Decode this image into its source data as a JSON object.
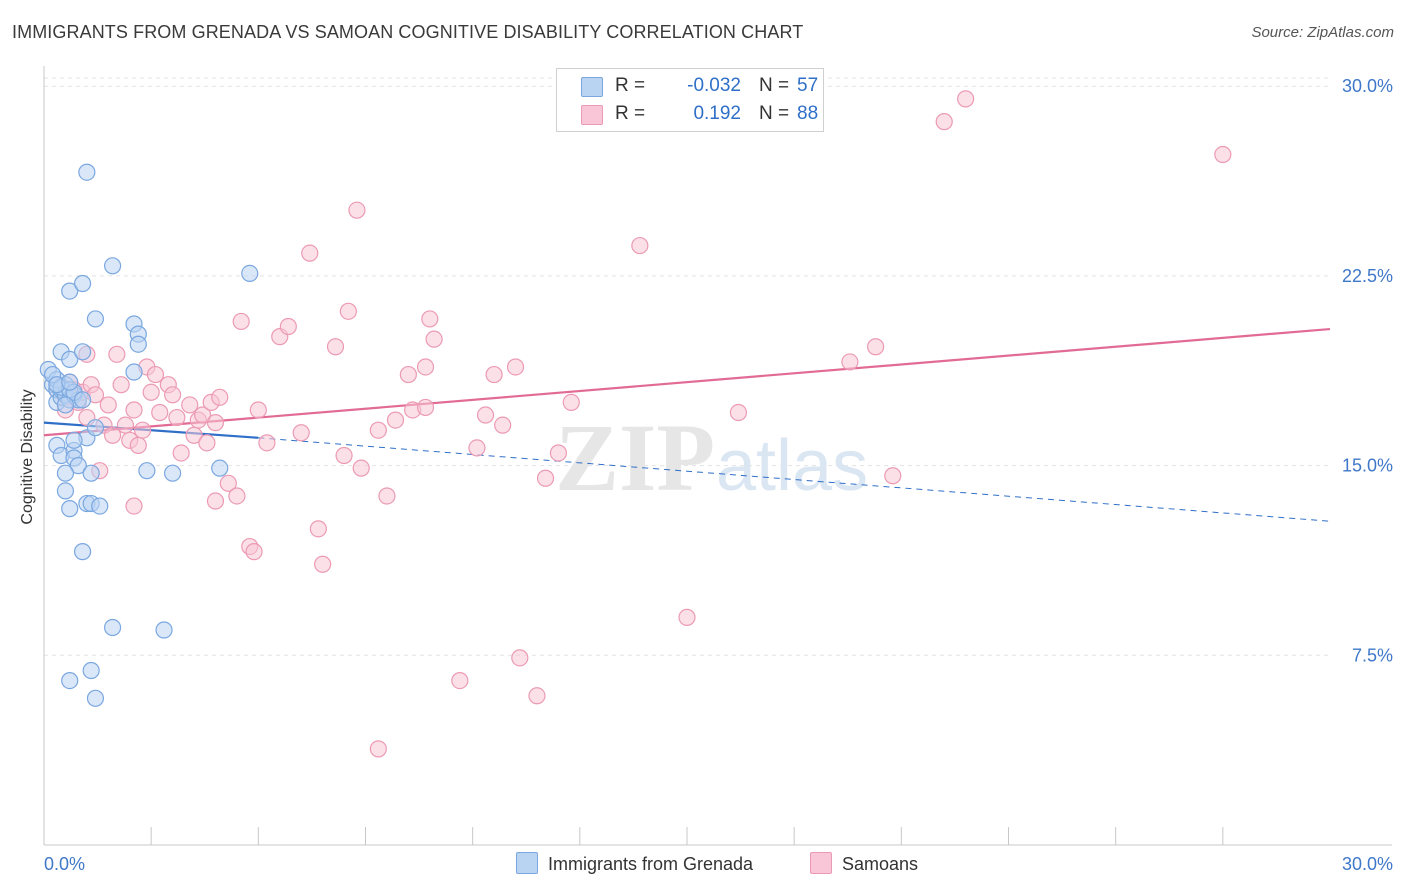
{
  "title": "IMMIGRANTS FROM GRENADA VS SAMOAN COGNITIVE DISABILITY CORRELATION CHART",
  "source": "Source: ZipAtlas.com",
  "watermark": {
    "zip": "ZIP",
    "atlas": "atlas"
  },
  "colors": {
    "blue_fill": "#b9d3f3",
    "blue_stroke": "#7aa7e0",
    "blue_line": "#2f6fc8",
    "pink_fill": "#f8c6d6",
    "pink_stroke": "#ec9ab4",
    "pink_line": "#e26b96",
    "tick_label": "#3f78c9",
    "grid": "#e3e3e3",
    "axis": "#c8c8c8"
  },
  "stats_box": {
    "rows": [
      {
        "series": "blue",
        "r_label": "R =",
        "r_value": "-0.032",
        "n_label": "N =",
        "n_value": "57"
      },
      {
        "series": "pink",
        "r_label": "R =",
        "r_value": "0.192",
        "n_label": "N =",
        "n_value": "88"
      }
    ]
  },
  "legend": {
    "items": [
      {
        "label": "Immigrants from Grenada",
        "series": "blue"
      },
      {
        "label": "Samoans",
        "series": "pink"
      }
    ]
  },
  "chart_data": {
    "type": "scatter",
    "title": "IMMIGRANTS FROM GRENADA VS SAMOAN COGNITIVE DISABILITY CORRELATION CHART",
    "xlabel": "",
    "ylabel": "Cognitive Disability",
    "xlim": [
      0,
      30
    ],
    "ylim": [
      0,
      30.8
    ],
    "x_tick_labels": [
      {
        "value": 0,
        "label": "0.0%"
      },
      {
        "value": 30,
        "label": "30.0%"
      }
    ],
    "y_tick_labels": [
      {
        "value": 7.5,
        "label": "7.5%"
      },
      {
        "value": 15.0,
        "label": "15.0%"
      },
      {
        "value": 22.5,
        "label": "22.5%"
      },
      {
        "value": 30.0,
        "label": "30.0%"
      }
    ],
    "series": [
      {
        "name": "Immigrants from Grenada",
        "color": "blue",
        "trend": {
          "x": [
            0.0,
            5.0
          ],
          "y": [
            16.7,
            16.1
          ],
          "dashed_to": {
            "x": 30.0,
            "y": 12.8
          }
        },
        "points": [
          [
            0.1,
            18.8
          ],
          [
            0.2,
            18.2
          ],
          [
            0.3,
            17.5
          ],
          [
            0.3,
            18.0
          ],
          [
            0.4,
            17.7
          ],
          [
            0.4,
            18.0
          ],
          [
            0.5,
            17.8
          ],
          [
            0.5,
            18.2
          ],
          [
            0.6,
            17.6
          ],
          [
            0.7,
            17.8
          ],
          [
            0.8,
            17.6
          ],
          [
            0.3,
            18.4
          ],
          [
            0.4,
            18.1
          ],
          [
            0.6,
            18.0
          ],
          [
            0.7,
            17.9
          ],
          [
            0.5,
            17.4
          ],
          [
            0.2,
            18.6
          ],
          [
            0.3,
            18.2
          ],
          [
            0.6,
            18.3
          ],
          [
            0.9,
            17.6
          ],
          [
            0.4,
            19.5
          ],
          [
            0.6,
            19.2
          ],
          [
            0.9,
            19.5
          ],
          [
            1.2,
            20.8
          ],
          [
            2.1,
            20.6
          ],
          [
            2.2,
            20.2
          ],
          [
            2.2,
            19.8
          ],
          [
            2.1,
            18.7
          ],
          [
            0.6,
            21.9
          ],
          [
            0.9,
            22.2
          ],
          [
            1.6,
            22.9
          ],
          [
            4.8,
            22.6
          ],
          [
            1.0,
            26.6
          ],
          [
            0.3,
            15.8
          ],
          [
            0.4,
            15.4
          ],
          [
            0.7,
            15.6
          ],
          [
            0.7,
            15.3
          ],
          [
            0.8,
            15.0
          ],
          [
            0.5,
            14.7
          ],
          [
            1.1,
            14.7
          ],
          [
            2.4,
            14.8
          ],
          [
            3.0,
            14.7
          ],
          [
            4.1,
            14.9
          ],
          [
            1.0,
            16.1
          ],
          [
            1.2,
            16.5
          ],
          [
            0.5,
            14.0
          ],
          [
            0.6,
            13.3
          ],
          [
            1.0,
            13.5
          ],
          [
            1.1,
            13.5
          ],
          [
            1.3,
            13.4
          ],
          [
            0.9,
            11.6
          ],
          [
            1.6,
            8.6
          ],
          [
            2.8,
            8.5
          ],
          [
            1.1,
            6.9
          ],
          [
            0.6,
            6.5
          ],
          [
            1.2,
            5.8
          ],
          [
            0.7,
            16.0
          ]
        ]
      },
      {
        "name": "Samoans",
        "color": "pink",
        "trend": {
          "x": [
            0.0,
            30.0
          ],
          "y": [
            16.2,
            20.4
          ]
        },
        "points": [
          [
            0.3,
            18.0
          ],
          [
            0.5,
            17.7
          ],
          [
            0.6,
            18.3
          ],
          [
            0.7,
            18.0
          ],
          [
            0.8,
            17.5
          ],
          [
            0.9,
            17.9
          ],
          [
            1.0,
            19.4
          ],
          [
            1.1,
            18.2
          ],
          [
            1.2,
            17.8
          ],
          [
            1.4,
            16.6
          ],
          [
            1.5,
            17.4
          ],
          [
            1.6,
            16.2
          ],
          [
            1.7,
            19.4
          ],
          [
            1.8,
            18.2
          ],
          [
            1.9,
            16.6
          ],
          [
            2.0,
            16.0
          ],
          [
            2.1,
            17.2
          ],
          [
            2.2,
            15.8
          ],
          [
            2.3,
            16.4
          ],
          [
            2.4,
            18.9
          ],
          [
            2.5,
            17.9
          ],
          [
            2.6,
            18.6
          ],
          [
            2.7,
            17.1
          ],
          [
            2.9,
            18.2
          ],
          [
            3.0,
            17.8
          ],
          [
            3.1,
            16.9
          ],
          [
            3.2,
            15.5
          ],
          [
            3.4,
            17.4
          ],
          [
            3.5,
            16.2
          ],
          [
            3.6,
            16.8
          ],
          [
            3.7,
            17.0
          ],
          [
            3.8,
            15.9
          ],
          [
            3.9,
            17.5
          ],
          [
            4.0,
            16.7
          ],
          [
            4.1,
            17.7
          ],
          [
            4.3,
            14.3
          ],
          [
            4.5,
            13.8
          ],
          [
            4.6,
            20.7
          ],
          [
            4.8,
            11.8
          ],
          [
            4.9,
            11.6
          ],
          [
            5.0,
            17.2
          ],
          [
            5.2,
            15.9
          ],
          [
            5.5,
            20.1
          ],
          [
            5.7,
            20.5
          ],
          [
            6.0,
            16.3
          ],
          [
            6.2,
            23.4
          ],
          [
            6.4,
            12.5
          ],
          [
            6.5,
            11.1
          ],
          [
            6.8,
            19.7
          ],
          [
            7.0,
            15.4
          ],
          [
            7.1,
            21.1
          ],
          [
            7.3,
            25.1
          ],
          [
            7.4,
            14.9
          ],
          [
            7.8,
            16.4
          ],
          [
            8.0,
            13.8
          ],
          [
            8.2,
            16.8
          ],
          [
            8.5,
            18.6
          ],
          [
            8.6,
            17.2
          ],
          [
            8.9,
            17.3
          ],
          [
            9.0,
            20.8
          ],
          [
            9.1,
            20.0
          ],
          [
            8.9,
            18.9
          ],
          [
            10.1,
            15.7
          ],
          [
            10.3,
            17.0
          ],
          [
            10.5,
            18.6
          ],
          [
            10.7,
            16.6
          ],
          [
            11.0,
            18.9
          ],
          [
            11.7,
            14.5
          ],
          [
            12.0,
            15.5
          ],
          [
            12.3,
            17.5
          ],
          [
            13.9,
            23.7
          ],
          [
            15.0,
            9.0
          ],
          [
            16.2,
            17.1
          ],
          [
            18.8,
            19.1
          ],
          [
            19.4,
            19.7
          ],
          [
            19.8,
            14.6
          ],
          [
            21.0,
            28.6
          ],
          [
            21.5,
            29.5
          ],
          [
            27.5,
            27.3
          ],
          [
            1.3,
            14.8
          ],
          [
            2.1,
            13.4
          ],
          [
            4.0,
            13.6
          ],
          [
            9.7,
            6.5
          ],
          [
            11.1,
            7.4
          ],
          [
            11.5,
            5.9
          ],
          [
            7.8,
            3.8
          ],
          [
            0.5,
            17.2
          ],
          [
            1.0,
            16.9
          ]
        ]
      }
    ]
  }
}
